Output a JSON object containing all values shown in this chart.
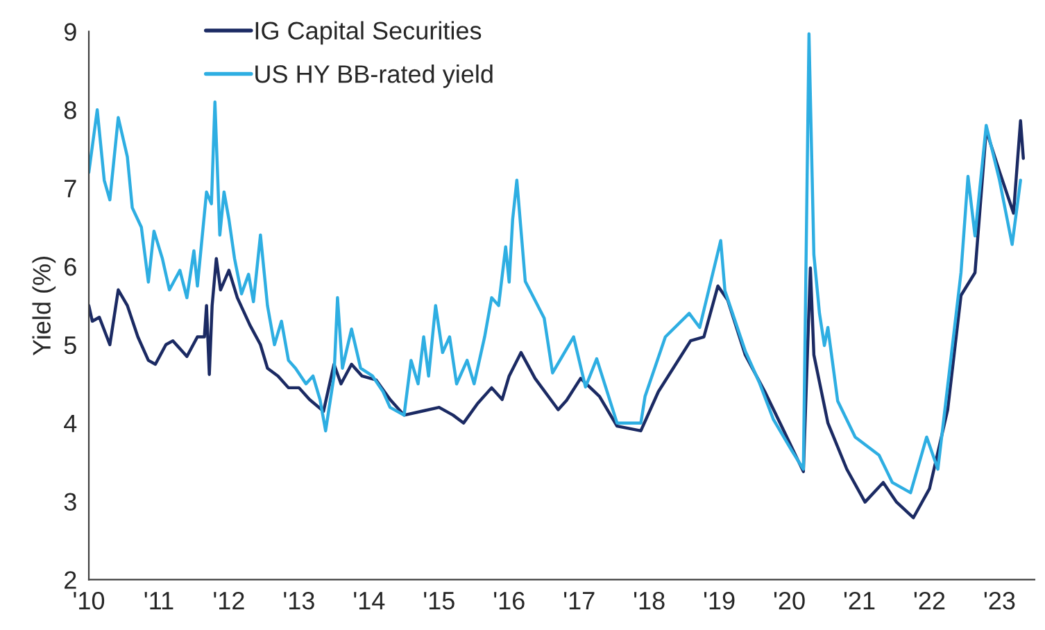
{
  "chart_data": {
    "type": "line",
    "ylabel": "Yield (%)",
    "xlim": [
      2010,
      2023.5
    ],
    "ylim": [
      2,
      9
    ],
    "yticks": [
      2,
      3,
      4,
      5,
      6,
      7,
      8,
      9
    ],
    "xticks": [
      {
        "value": 2010,
        "label": "'10"
      },
      {
        "value": 2011,
        "label": "'11"
      },
      {
        "value": 2012,
        "label": "'12"
      },
      {
        "value": 2013,
        "label": "'13"
      },
      {
        "value": 2014,
        "label": "'14"
      },
      {
        "value": 2015,
        "label": "'15"
      },
      {
        "value": 2016,
        "label": "'16"
      },
      {
        "value": 2017,
        "label": "'17"
      },
      {
        "value": 2018,
        "label": "'18"
      },
      {
        "value": 2019,
        "label": "'19"
      },
      {
        "value": 2020,
        "label": "'20"
      },
      {
        "value": 2021,
        "label": "'21"
      },
      {
        "value": 2022,
        "label": "'22"
      },
      {
        "value": 2023,
        "label": "'23"
      }
    ],
    "grid": false,
    "legend": "top left",
    "marker": "none",
    "line_style": "solid",
    "series": [
      {
        "name": "IG Capital Securities",
        "color": "#1b2a63",
        "x": [
          2010.0,
          2010.05,
          2010.15,
          2010.3,
          2010.42,
          2010.55,
          2010.7,
          2010.85,
          2010.95,
          2011.1,
          2011.2,
          2011.4,
          2011.55,
          2011.65,
          2011.68,
          2011.72,
          2011.76,
          2011.82,
          2011.88,
          2012.0,
          2012.12,
          2012.3,
          2012.45,
          2012.55,
          2012.7,
          2012.85,
          2013.0,
          2013.15,
          2013.35,
          2013.5,
          2013.6,
          2013.75,
          2013.9,
          2014.1,
          2014.3,
          2014.5,
          2014.75,
          2015.0,
          2015.2,
          2015.35,
          2015.55,
          2015.75,
          2015.9,
          2016.0,
          2016.17,
          2016.37,
          2016.7,
          2016.82,
          2017.02,
          2017.29,
          2017.54,
          2017.88,
          2018.13,
          2018.59,
          2018.78,
          2018.98,
          2019.12,
          2019.37,
          2019.65,
          2019.9,
          2020.2,
          2020.3,
          2020.35,
          2020.55,
          2020.82,
          2021.08,
          2021.34,
          2021.53,
          2021.77,
          2022.0,
          2022.26,
          2022.45,
          2022.65,
          2022.81,
          2023.0,
          2023.2,
          2023.3,
          2023.34
        ],
        "values": [
          5.5,
          5.3,
          5.35,
          5.0,
          5.7,
          5.5,
          5.1,
          4.8,
          4.75,
          5.0,
          5.05,
          4.85,
          5.1,
          5.1,
          5.5,
          4.62,
          5.5,
          6.1,
          5.7,
          5.95,
          5.6,
          5.25,
          5.0,
          4.7,
          4.6,
          4.45,
          4.45,
          4.3,
          4.15,
          4.75,
          4.5,
          4.75,
          4.6,
          4.55,
          4.3,
          4.1,
          4.15,
          4.2,
          4.1,
          4.0,
          4.25,
          4.45,
          4.3,
          4.6,
          4.9,
          4.57,
          4.17,
          4.29,
          4.57,
          4.34,
          3.96,
          3.9,
          4.4,
          5.05,
          5.1,
          5.75,
          5.57,
          4.87,
          4.4,
          3.94,
          3.38,
          5.98,
          4.87,
          4.0,
          3.41,
          2.99,
          3.24,
          2.99,
          2.79,
          3.16,
          4.17,
          5.63,
          5.92,
          7.74,
          7.21,
          6.68,
          7.86,
          7.38
        ]
      },
      {
        "name": "US HY BB-rated yield",
        "color": "#2eaee2",
        "x": [
          2010.0,
          2010.12,
          2010.22,
          2010.3,
          2010.42,
          2010.55,
          2010.62,
          2010.75,
          2010.85,
          2010.93,
          2011.05,
          2011.15,
          2011.3,
          2011.4,
          2011.5,
          2011.55,
          2011.68,
          2011.75,
          2011.8,
          2011.87,
          2011.93,
          2012.0,
          2012.08,
          2012.18,
          2012.28,
          2012.35,
          2012.45,
          2012.55,
          2012.65,
          2012.75,
          2012.85,
          2012.95,
          2013.1,
          2013.2,
          2013.3,
          2013.38,
          2013.5,
          2013.55,
          2013.62,
          2013.75,
          2013.88,
          2014.05,
          2014.2,
          2014.3,
          2014.5,
          2014.6,
          2014.7,
          2014.78,
          2014.85,
          2014.95,
          2015.05,
          2015.15,
          2015.25,
          2015.4,
          2015.5,
          2015.65,
          2015.75,
          2015.85,
          2015.95,
          2016.0,
          2016.05,
          2016.11,
          2016.23,
          2016.5,
          2016.62,
          2016.92,
          2017.09,
          2017.25,
          2017.54,
          2017.88,
          2017.94,
          2018.23,
          2018.57,
          2018.72,
          2019.02,
          2019.08,
          2019.37,
          2019.57,
          2019.77,
          2020.04,
          2020.2,
          2020.28,
          2020.35,
          2020.43,
          2020.5,
          2020.55,
          2020.69,
          2020.94,
          2021.28,
          2021.47,
          2021.73,
          2021.96,
          2022.12,
          2022.45,
          2022.55,
          2022.65,
          2022.81,
          2023.0,
          2023.18,
          2023.3
        ],
        "values": [
          7.2,
          8.0,
          7.1,
          6.85,
          7.9,
          7.4,
          6.75,
          6.5,
          5.8,
          6.45,
          6.1,
          5.7,
          5.95,
          5.6,
          6.2,
          5.75,
          6.95,
          6.8,
          8.1,
          6.4,
          6.95,
          6.6,
          6.1,
          5.65,
          5.9,
          5.55,
          6.4,
          5.5,
          5.0,
          5.3,
          4.8,
          4.7,
          4.5,
          4.6,
          4.3,
          3.9,
          4.6,
          5.6,
          4.7,
          5.2,
          4.7,
          4.6,
          4.4,
          4.2,
          4.1,
          4.8,
          4.5,
          5.1,
          4.6,
          5.5,
          4.9,
          5.1,
          4.5,
          4.8,
          4.5,
          5.1,
          5.6,
          5.5,
          6.25,
          5.8,
          6.6,
          7.1,
          5.81,
          5.34,
          4.64,
          5.1,
          4.46,
          4.82,
          4.0,
          4.0,
          4.34,
          5.1,
          5.4,
          5.22,
          6.33,
          5.69,
          4.92,
          4.52,
          4.05,
          3.64,
          3.41,
          8.97,
          6.15,
          5.4,
          4.99,
          5.22,
          4.28,
          3.82,
          3.59,
          3.24,
          3.11,
          3.82,
          3.41,
          5.92,
          7.15,
          6.39,
          7.8,
          7.1,
          6.28,
          7.1
        ]
      }
    ]
  }
}
